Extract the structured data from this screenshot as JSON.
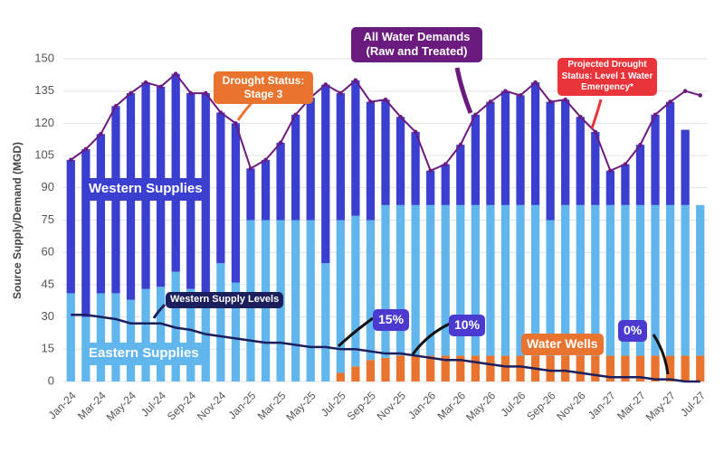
{
  "chart_data": {
    "type": "bar",
    "y_label": "Source Supply/Demand (MGD)",
    "categories": [
      "Jan-24",
      null,
      "Mar-24",
      null,
      "May-24",
      null,
      "Jul-24",
      null,
      "Sep-24",
      null,
      "Nov-24",
      null,
      "Jan-25",
      null,
      "Mar-25",
      null,
      "May-25",
      null,
      "Jul-25",
      null,
      "Sep-25",
      null,
      "Nov-25",
      null,
      "Jan-26",
      null,
      "Mar-26",
      null,
      "May-26",
      null,
      "Jul-26",
      null,
      "Sep-26",
      null,
      "Nov-26",
      null,
      "Jan-27",
      null,
      "Mar-27",
      null,
      "May-27",
      null,
      "Jul-27"
    ],
    "ylim": [
      0,
      150
    ],
    "yticks": [
      0,
      15,
      30,
      45,
      60,
      75,
      90,
      105,
      120,
      135,
      150
    ],
    "grid": true,
    "series": [
      {
        "name": "Water Wells",
        "type": "bar",
        "color": "#e8742f",
        "values": [
          0,
          0,
          0,
          0,
          0,
          0,
          0,
          0,
          0,
          0,
          0,
          0,
          0,
          0,
          0,
          0,
          0,
          0,
          4,
          7,
          10,
          11,
          12,
          12,
          12,
          12,
          12,
          12,
          12,
          12,
          12,
          12,
          12,
          12,
          12,
          12,
          12,
          12,
          12,
          12,
          12,
          12,
          12
        ]
      },
      {
        "name": "Eastern Supplies",
        "type": "bar",
        "color": "#62b6ee",
        "values": [
          41,
          30,
          41,
          41,
          38,
          43,
          44,
          51,
          43,
          41,
          55,
          46,
          75,
          75,
          75,
          75,
          75,
          55,
          71,
          70,
          65,
          71,
          70,
          70,
          70,
          70,
          70,
          70,
          70,
          70,
          70,
          70,
          63,
          70,
          70,
          70,
          70,
          70,
          70,
          70,
          70,
          70,
          70
        ]
      },
      {
        "name": "Western Supplies",
        "type": "bar",
        "color": "#3a3fd0",
        "values": [
          62,
          78,
          74,
          87,
          96,
          96,
          93,
          92,
          91,
          93,
          70,
          74,
          24,
          28,
          36,
          49,
          57,
          83,
          59,
          63,
          55,
          49,
          41,
          34,
          16,
          19,
          28,
          42,
          48,
          53,
          51,
          57,
          55,
          49,
          41,
          34,
          16,
          19,
          28,
          42,
          48,
          35,
          0
        ]
      },
      {
        "name": "All Water Demands (Raw and Treated)",
        "type": "line",
        "color": "#6b1b7d",
        "values": [
          103,
          108,
          115,
          128,
          134,
          139,
          137,
          143,
          134,
          134,
          125,
          120,
          99,
          103,
          111,
          124,
          132,
          138,
          134,
          140,
          130,
          131,
          123,
          116,
          98,
          101,
          110,
          124,
          130,
          135,
          133,
          139,
          130,
          131,
          123,
          116,
          98,
          101,
          110,
          124,
          130,
          135,
          133
        ]
      },
      {
        "name": "Western Supply Levels",
        "type": "line",
        "color": "#1c1f5e",
        "values": [
          31,
          31,
          30,
          29,
          27,
          27,
          27,
          25,
          24,
          22,
          21,
          20,
          19,
          18,
          18,
          17,
          16,
          16,
          15,
          15,
          14,
          13,
          13,
          12,
          11,
          10,
          10,
          9,
          8,
          7,
          7,
          6,
          5,
          5,
          4,
          3,
          2,
          2,
          2,
          1,
          1,
          0,
          0
        ]
      }
    ],
    "annotations": [
      {
        "text": "Drought Status: Stage 3",
        "color": "#e8742f"
      },
      {
        "text": "Projected Drought Status: Level 1 Water Emergency*",
        "color": "#e8343a"
      },
      {
        "text": "15%",
        "color": "#4a3ad0"
      },
      {
        "text": "10%",
        "color": "#4a3ad0"
      },
      {
        "text": "0%",
        "color": "#4a3ad0"
      }
    ]
  }
}
